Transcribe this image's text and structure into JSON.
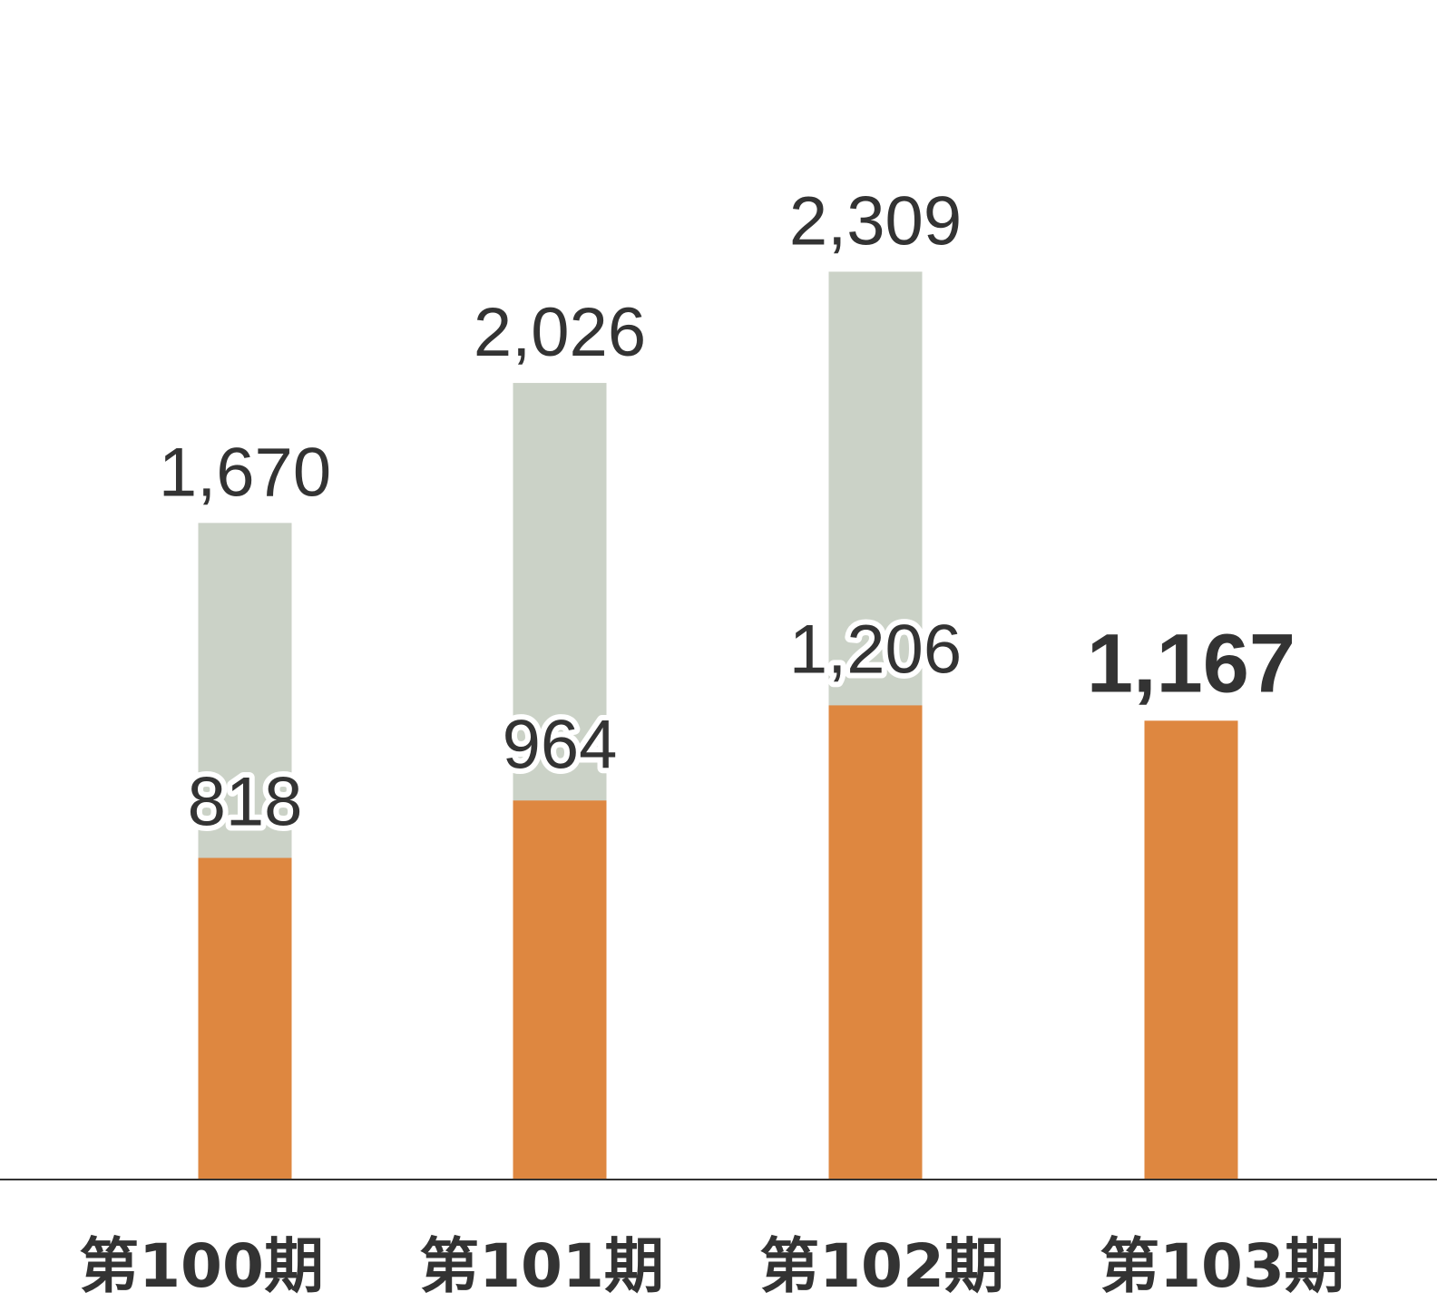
{
  "chart_data": {
    "type": "bar",
    "stacked": false,
    "overlap": true,
    "categories": [
      "第100期",
      "第101期",
      "第102期",
      "第103期"
    ],
    "series": [
      {
        "values": [
          1670,
          2026,
          2309,
          null
        ],
        "color": "#cbd2c7"
      },
      {
        "values": [
          818,
          964,
          1206,
          1167
        ],
        "color": "#de8740"
      }
    ],
    "labels": {
      "series_a": [
        "1,670",
        "2,026",
        "2,309",
        ""
      ],
      "series_b": [
        "818",
        "964",
        "1,206",
        "1,167"
      ]
    },
    "highlight_index": 3,
    "ylim": [
      0,
      3000
    ],
    "grid": false,
    "legend": "none",
    "axis_color": "#333333",
    "text_color": "#333333"
  }
}
